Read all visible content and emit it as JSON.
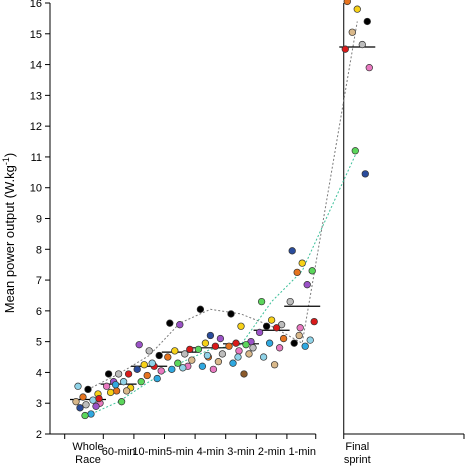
{
  "chart_data": {
    "type": "scatter",
    "ylabel_main": "Mean power output (W.kg",
    "ylabel_sup": "-1",
    "ylabel_end": ")",
    "ylim": [
      2,
      16
    ],
    "yticks": [
      2,
      3,
      4,
      5,
      6,
      7,
      8,
      9,
      10,
      11,
      12,
      13,
      14,
      15,
      16
    ],
    "categories": [
      {
        "lines": [
          "Whole",
          "Race"
        ]
      },
      {
        "lines": [
          "60-min"
        ]
      },
      {
        "lines": [
          "10-min"
        ]
      },
      {
        "lines": [
          "5-min"
        ]
      },
      {
        "lines": [
          "4-min"
        ]
      },
      {
        "lines": [
          "3-min"
        ]
      },
      {
        "lines": [
          "2-min"
        ]
      },
      {
        "lines": [
          "1-min"
        ]
      },
      {
        "lines": [
          "Final",
          "sprint"
        ]
      }
    ],
    "category_x": [
      0,
      1,
      2,
      3,
      4,
      5,
      6,
      7,
      8.8
    ],
    "group_break_after": 7,
    "means": [
      3.12,
      3.62,
      4.2,
      4.66,
      4.8,
      4.93,
      5.37,
      6.15,
      14.57
    ],
    "points": [
      [
        {
          "y": 3.55,
          "color": "#8fd3e8"
        },
        {
          "y": 3.45,
          "color": "#000000"
        },
        {
          "y": 3.3,
          "color": "#f7d117"
        },
        {
          "y": 3.2,
          "color": "#e6731e"
        },
        {
          "y": 3.1,
          "color": "#8fd3e8"
        },
        {
          "y": 3.05,
          "color": "#d9b88a"
        },
        {
          "y": 3.0,
          "color": "#e879c0"
        },
        {
          "y": 2.95,
          "color": "#bdbdbd"
        },
        {
          "y": 2.9,
          "color": "#9b52c7"
        },
        {
          "y": 2.85,
          "color": "#2a4c9c"
        },
        {
          "y": 2.65,
          "color": "#2fa8e0"
        },
        {
          "y": 2.6,
          "color": "#5bd65b"
        },
        {
          "y": 3.15,
          "color": "#d91a1a"
        }
      ],
      [
        {
          "y": 3.95,
          "color": "#000000"
        },
        {
          "y": 3.95,
          "color": "#bdbdbd"
        },
        {
          "y": 3.95,
          "color": "#d91a1a"
        },
        {
          "y": 3.7,
          "color": "#9b52c7"
        },
        {
          "y": 3.7,
          "color": "#8fd3e8"
        },
        {
          "y": 3.55,
          "color": "#e879c0"
        },
        {
          "y": 3.5,
          "color": "#f7d117"
        },
        {
          "y": 3.4,
          "color": "#e6731e"
        },
        {
          "y": 3.4,
          "color": "#d9b88a"
        },
        {
          "y": 3.35,
          "color": "#f7d117"
        },
        {
          "y": 3.05,
          "color": "#5bd65b"
        },
        {
          "y": 3.6,
          "color": "#2fa8e0"
        }
      ],
      [
        {
          "y": 4.9,
          "color": "#9b52c7"
        },
        {
          "y": 4.7,
          "color": "#bdbdbd"
        },
        {
          "y": 4.55,
          "color": "#000000"
        },
        {
          "y": 4.25,
          "color": "#f7d117"
        },
        {
          "y": 4.2,
          "color": "#d91a1a"
        },
        {
          "y": 4.1,
          "color": "#2a4c9c"
        },
        {
          "y": 4.05,
          "color": "#e879c0"
        },
        {
          "y": 3.9,
          "color": "#e6731e"
        },
        {
          "y": 3.8,
          "color": "#2fa8e0"
        },
        {
          "y": 3.7,
          "color": "#5bd65b"
        },
        {
          "y": 4.3,
          "color": "#8fd3e8"
        }
      ],
      [
        {
          "y": 5.6,
          "color": "#000000"
        },
        {
          "y": 5.55,
          "color": "#9b52c7"
        },
        {
          "y": 4.75,
          "color": "#d91a1a"
        },
        {
          "y": 4.7,
          "color": "#f7d117"
        },
        {
          "y": 4.6,
          "color": "#bdbdbd"
        },
        {
          "y": 4.5,
          "color": "#e6731e"
        },
        {
          "y": 4.4,
          "color": "#d9b88a"
        },
        {
          "y": 4.3,
          "color": "#5bd65b"
        },
        {
          "y": 4.2,
          "color": "#e879c0"
        },
        {
          "y": 4.1,
          "color": "#2fa8e0"
        },
        {
          "y": 4.15,
          "color": "#8fd3e8"
        }
      ],
      [
        {
          "y": 6.05,
          "color": "#000000"
        },
        {
          "y": 5.2,
          "color": "#2a4c9c"
        },
        {
          "y": 5.1,
          "color": "#9b52c7"
        },
        {
          "y": 4.95,
          "color": "#f7d117"
        },
        {
          "y": 4.85,
          "color": "#d91a1a"
        },
        {
          "y": 4.75,
          "color": "#5bd65b"
        },
        {
          "y": 4.6,
          "color": "#bdbdbd"
        },
        {
          "y": 4.5,
          "color": "#e6731e"
        },
        {
          "y": 4.35,
          "color": "#d9b88a"
        },
        {
          "y": 4.2,
          "color": "#2fa8e0"
        },
        {
          "y": 4.1,
          "color": "#e879c0"
        },
        {
          "y": 4.55,
          "color": "#8fd3e8"
        }
      ],
      [
        {
          "y": 5.9,
          "color": "#000000"
        },
        {
          "y": 5.5,
          "color": "#f7d117"
        },
        {
          "y": 5.0,
          "color": "#9b52c7"
        },
        {
          "y": 4.95,
          "color": "#d91a1a"
        },
        {
          "y": 4.9,
          "color": "#5bd65b"
        },
        {
          "y": 4.85,
          "color": "#e6731e"
        },
        {
          "y": 4.8,
          "color": "#bdbdbd"
        },
        {
          "y": 4.7,
          "color": "#e879c0"
        },
        {
          "y": 4.6,
          "color": "#d9b88a"
        },
        {
          "y": 4.3,
          "color": "#2fa8e0"
        },
        {
          "y": 3.95,
          "color": "#8b5a2b"
        },
        {
          "y": 4.5,
          "color": "#8fd3e8"
        }
      ],
      [
        {
          "y": 6.3,
          "color": "#5bd65b"
        },
        {
          "y": 5.7,
          "color": "#f7d117"
        },
        {
          "y": 5.55,
          "color": "#bdbdbd"
        },
        {
          "y": 5.5,
          "color": "#000000"
        },
        {
          "y": 5.45,
          "color": "#d91a1a"
        },
        {
          "y": 5.3,
          "color": "#9b52c7"
        },
        {
          "y": 5.1,
          "color": "#e6731e"
        },
        {
          "y": 4.95,
          "color": "#2fa8e0"
        },
        {
          "y": 4.8,
          "color": "#e879c0"
        },
        {
          "y": 4.5,
          "color": "#8fd3e8"
        },
        {
          "y": 4.25,
          "color": "#d9b88a"
        }
      ],
      [
        {
          "y": 7.95,
          "color": "#2a4c9c"
        },
        {
          "y": 7.55,
          "color": "#f7d117"
        },
        {
          "y": 7.3,
          "color": "#5bd65b"
        },
        {
          "y": 7.25,
          "color": "#e6731e"
        },
        {
          "y": 6.85,
          "color": "#9b52c7"
        },
        {
          "y": 6.3,
          "color": "#bdbdbd"
        },
        {
          "y": 5.65,
          "color": "#d91a1a"
        },
        {
          "y": 5.45,
          "color": "#e879c0"
        },
        {
          "y": 5.05,
          "color": "#8fd3e8"
        },
        {
          "y": 4.95,
          "color": "#000000"
        },
        {
          "y": 4.85,
          "color": "#2fa8e0"
        },
        {
          "y": 5.2,
          "color": "#d9b88a"
        }
      ],
      [
        {
          "y": 16.05,
          "color": "#e6731e"
        },
        {
          "y": 15.8,
          "color": "#f7d117"
        },
        {
          "y": 15.4,
          "color": "#000000"
        },
        {
          "y": 15.05,
          "color": "#d9b88a"
        },
        {
          "y": 14.65,
          "color": "#bdbdbd"
        },
        {
          "y": 14.5,
          "color": "#d91a1a"
        },
        {
          "y": 13.9,
          "color": "#e879c0"
        },
        {
          "y": 11.2,
          "color": "#5bd65b"
        },
        {
          "y": 10.45,
          "color": "#2a4c9c"
        }
      ]
    ],
    "trend_lines": [
      {
        "color": "#7a7a7a",
        "values": [
          3.45,
          3.95,
          4.55,
          5.6,
          6.05,
          5.9,
          5.5,
          4.95,
          15.4
        ]
      },
      {
        "color": "#3bbf99",
        "values": [
          2.6,
          3.05,
          3.7,
          4.3,
          4.75,
          4.9,
          6.3,
          7.3,
          11.2
        ]
      }
    ]
  }
}
